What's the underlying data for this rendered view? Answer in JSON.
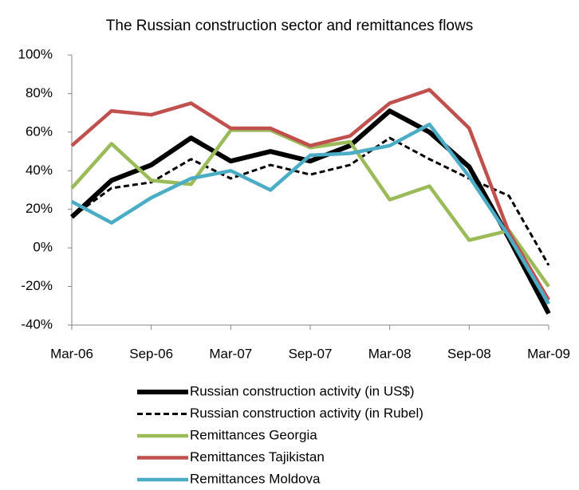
{
  "chart_data": {
    "type": "line",
    "title": "The Russian construction sector and remittances flows",
    "categories": [
      "Mar-06",
      null,
      "Sep-06",
      null,
      "Mar-07",
      null,
      "Sep-07",
      null,
      "Mar-08",
      null,
      "Sep-08",
      null,
      "Mar-09"
    ],
    "ylim": [
      -40,
      100
    ],
    "yticks": [
      {
        "value": -40,
        "label": "-40%"
      },
      {
        "value": -20,
        "label": "-20%"
      },
      {
        "value": 0,
        "label": "0%"
      },
      {
        "value": 20,
        "label": "20%"
      },
      {
        "value": 40,
        "label": "40%"
      },
      {
        "value": 60,
        "label": "60%"
      },
      {
        "value": 80,
        "label": "80%"
      },
      {
        "value": 100,
        "label": "100%"
      }
    ],
    "legend": "bottom",
    "series": [
      {
        "name": "Russian construction activity (in US$)",
        "color": "#000000",
        "width": 6,
        "dashed": false,
        "values": [
          16,
          35,
          43,
          57,
          45,
          50,
          45,
          53,
          71,
          60,
          42,
          5,
          -34
        ]
      },
      {
        "name": "Russian construction activity (in Rubel)",
        "color": "#000000",
        "width": 3,
        "dashed": true,
        "values": [
          16,
          31,
          34,
          46,
          36,
          43,
          38,
          43,
          57,
          46,
          36,
          27,
          -9
        ]
      },
      {
        "name": "Remittances Georgia",
        "color": "#9bbb59",
        "width": 4.5,
        "dashed": false,
        "values": [
          31,
          54,
          35,
          33,
          61,
          61,
          52,
          55,
          25,
          32,
          4,
          9,
          -20
        ]
      },
      {
        "name": "Remittances Tajikistan",
        "color": "#c0504d",
        "width": 4.5,
        "dashed": false,
        "values": [
          53,
          71,
          69,
          75,
          62,
          62,
          53,
          58,
          75,
          82,
          62,
          8,
          -27
        ]
      },
      {
        "name": "Remittances Moldova",
        "color": "#4bacc6",
        "width": 4.5,
        "dashed": false,
        "values": [
          24,
          13,
          26,
          36,
          40,
          30,
          48,
          49,
          53,
          64,
          37,
          6,
          -29
        ]
      }
    ]
  }
}
